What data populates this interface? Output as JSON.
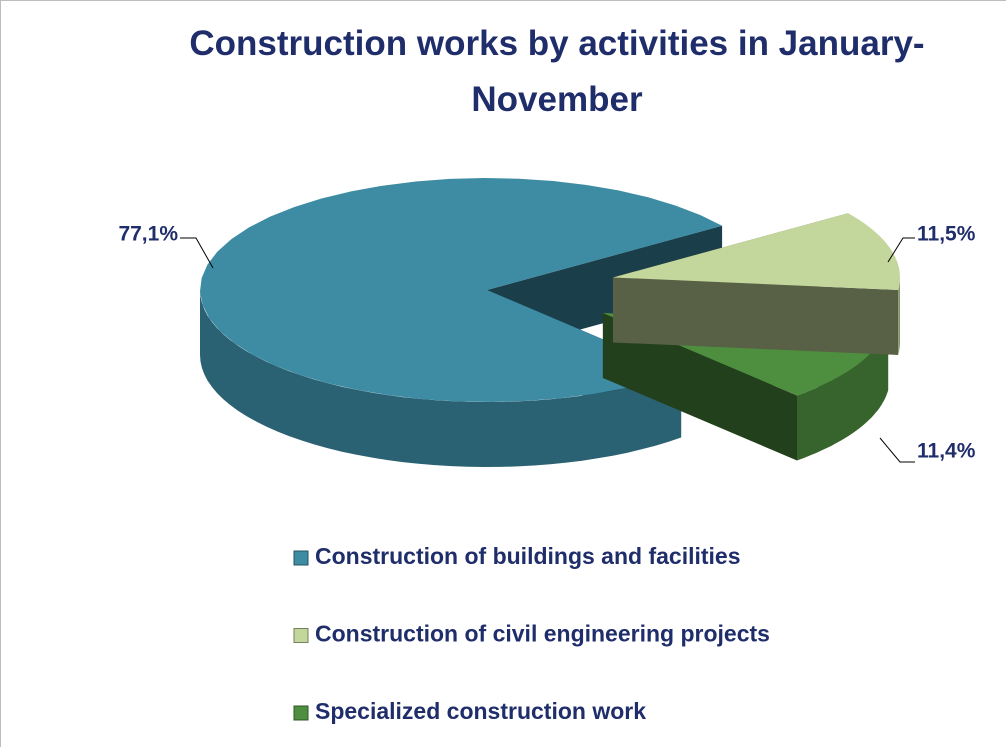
{
  "chart_data": {
    "type": "pie",
    "title": "Construction works by activities in January-November",
    "categories": [
      "Construction of buildings and facilities",
      "Construction of civil engineering projects",
      "Specialized construction work"
    ],
    "values": [
      77.1,
      11.5,
      11.4
    ],
    "value_labels": [
      "77,1%",
      "11,5%",
      "11,4%"
    ],
    "colors": [
      "#3d8ca4",
      "#c3d69b",
      "#4e8f3f"
    ],
    "legend": "bottom"
  }
}
